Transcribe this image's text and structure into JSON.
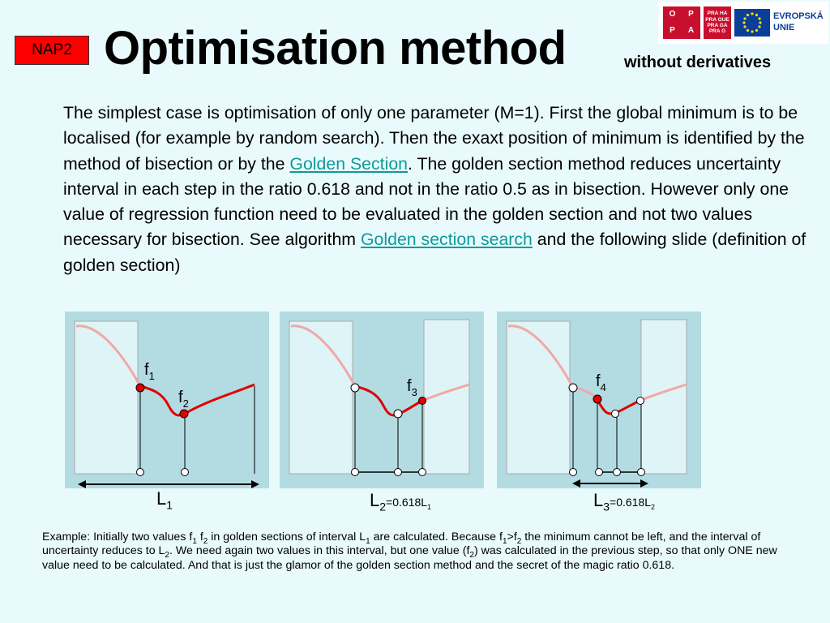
{
  "badge": "NAP2",
  "title": "Optimisation method",
  "subtitle": "without derivatives",
  "logo": {
    "oppa": [
      "O",
      "P",
      "P",
      "A"
    ],
    "praha": [
      "PRA",
      "HA",
      "PRA",
      "GUE",
      "PRA",
      "GA",
      "PRA",
      "G"
    ],
    "eu_text": [
      "EVROPSKÁ",
      "UNIE"
    ]
  },
  "paragraph": {
    "part1": "The simplest case is optimisation of only one parameter (M=1). First the global minimum is to be localised (for example by random search). Then the exaxt position of minimum is identified by the method of bisection or by the ",
    "link1": "Golden Section",
    "part2": ". The golden section method reduces uncertainty interval in each step in the ratio 0.618 and not in the ratio 0.5 as in bisection. However only one value of regression function need to be evaluated in the golden section and not two values necessary for bisection. See algorithm ",
    "link2": "Golden section search",
    "part3": " and  the following slide (definition of golden section)"
  },
  "diagrams": {
    "panel1": {
      "labels": [
        "f",
        "1",
        "f",
        "2"
      ]
    },
    "panel2": {
      "labels": [
        "f",
        "3"
      ]
    },
    "panel3": {
      "labels": [
        "f",
        "4"
      ]
    }
  },
  "captions": {
    "c1": {
      "main": "L",
      "sub": "1"
    },
    "c2": {
      "main": "L",
      "sub": "2",
      "eq": "=0.618L",
      "eqsub": "1"
    },
    "c3": {
      "main": "L",
      "sub": "3",
      "eq": "=0.618L",
      "eqsub": "2"
    }
  },
  "example": {
    "t1": "Example: Initially two values f",
    "s1": "1",
    "t2": " f",
    "s2": "2",
    "t3": " in golden sections of interval L",
    "s3": "1",
    "t4": " are calculated. Because f",
    "s4": "1",
    "t5": ">f",
    "s5": "2",
    "t6": " the minimum cannot be left, and the interval of uncertainty reduces to L",
    "s6": "2",
    "t7": ". We need again two values in this interval, but one value (f",
    "s7": "2",
    "t8": ") was calculated in the previous step, so that only ONE new value need to be calculated. And that is just the glamor of the golden section method and the secret of the magic ratio 0.618."
  },
  "colors": {
    "background": "#e9fafc",
    "badge": "#ff0000",
    "link": "#0f9a9a",
    "curve_active": "#e00000",
    "curve_faded": "#f2a7a7",
    "panel": "#b3dbe2"
  }
}
